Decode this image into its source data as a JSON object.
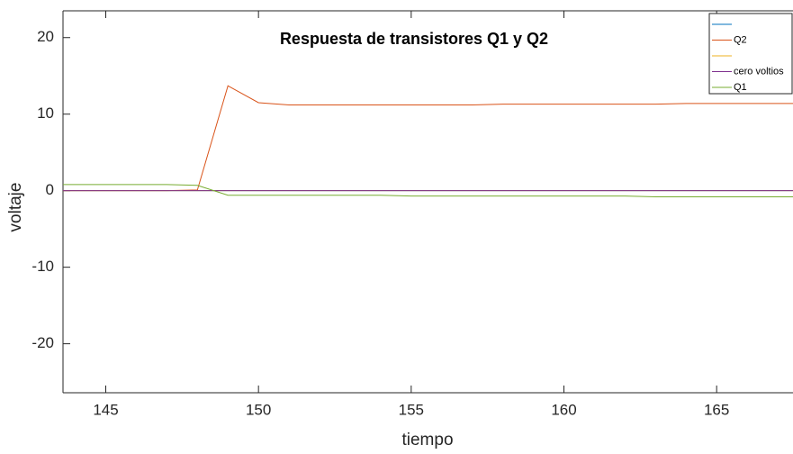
{
  "chart_data": {
    "type": "line",
    "title": "Respuesta de transistores  Q1 y Q2",
    "x_label": "tiempo",
    "y_label": "voltaje",
    "x": [
      143,
      144,
      145,
      146,
      147,
      148,
      149,
      150,
      151,
      152,
      153,
      154,
      155,
      156,
      157,
      158,
      159,
      160,
      161,
      162,
      163,
      164,
      165,
      166,
      167,
      168
    ],
    "series": [
      {
        "name": null,
        "color": "#0072bd",
        "values": [
          0,
          0,
          0,
          0,
          0,
          0,
          0,
          0,
          0,
          0,
          0,
          0,
          0,
          0,
          0,
          0,
          0,
          0,
          0,
          0,
          0,
          0,
          0,
          0,
          0,
          0
        ]
      },
      {
        "name": "Q2",
        "color": "#d95319",
        "values": [
          0,
          0,
          0,
          0,
          0,
          0.1,
          13.7,
          11.5,
          11.2,
          11.2,
          11.2,
          11.2,
          11.2,
          11.2,
          11.2,
          11.3,
          11.3,
          11.3,
          11.3,
          11.3,
          11.3,
          11.4,
          11.4,
          11.4,
          11.4,
          11.4
        ]
      },
      {
        "name": null,
        "color": "#edb120",
        "values": [
          0,
          0,
          0,
          0,
          0,
          0,
          0,
          0,
          0,
          0,
          0,
          0,
          0,
          0,
          0,
          0,
          0,
          0,
          0,
          0,
          0,
          0,
          0,
          0,
          0,
          0
        ]
      },
      {
        "name": "cero voltios",
        "color": "#7e2f8e",
        "values": [
          0,
          0,
          0,
          0,
          0,
          0,
          0,
          0,
          0,
          0,
          0,
          0,
          0,
          0,
          0,
          0,
          0,
          0,
          0,
          0,
          0,
          0,
          0,
          0,
          0,
          0
        ]
      },
      {
        "name": "Q1",
        "color": "#77ac30",
        "values": [
          0.8,
          0.8,
          0.8,
          0.8,
          0.8,
          0.7,
          -0.6,
          -0.6,
          -0.6,
          -0.6,
          -0.6,
          -0.6,
          -0.7,
          -0.7,
          -0.7,
          -0.7,
          -0.7,
          -0.7,
          -0.7,
          -0.7,
          -0.8,
          -0.8,
          -0.8,
          -0.8,
          -0.8,
          -0.8
        ]
      }
    ],
    "xlim": [
      143.6,
      167.5
    ],
    "ylim": [
      -26.4,
      23.5
    ],
    "xticks": [
      145,
      150,
      155,
      160,
      165
    ],
    "yticks": [
      -20,
      -10,
      0,
      10,
      20
    ],
    "legend": "northeast"
  }
}
